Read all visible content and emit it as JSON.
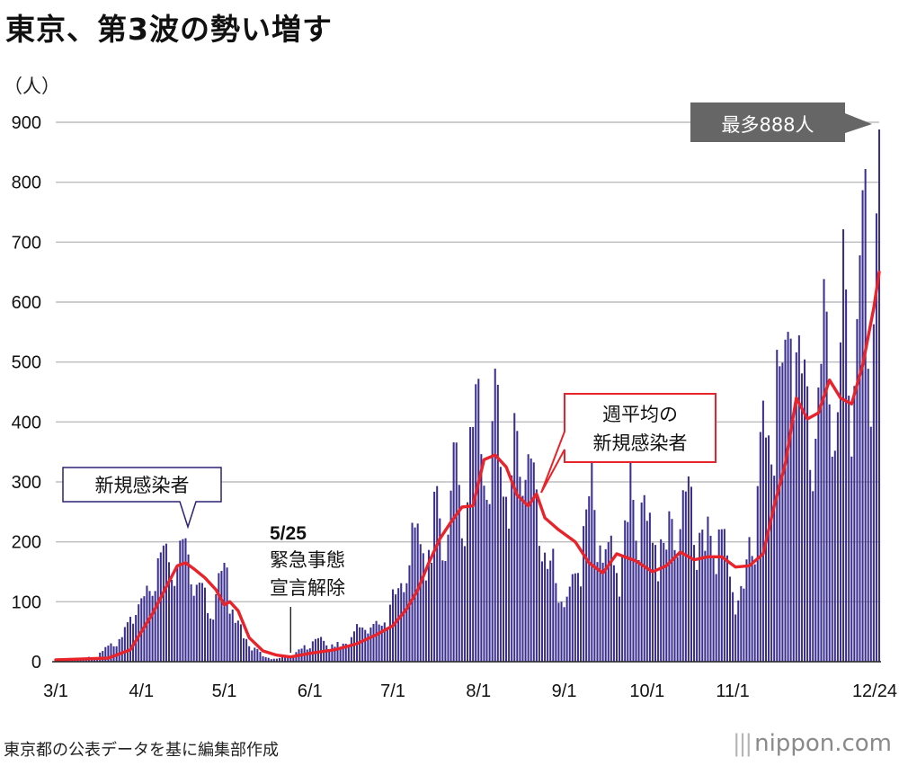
{
  "title": "東京、第3波の勢い増す",
  "unit_label": "（人）",
  "source": "東京都の公表データを基に編集部作成",
  "brand": "nippon.com",
  "colors": {
    "bar": "#3a2f8f",
    "line": "#e8232a",
    "grid": "#bdbdbd",
    "peak_box": "#666666"
  },
  "chart_data": {
    "type": "bar",
    "title": "東京、第3波の勢い増す",
    "ylabel": "（人）",
    "ylim": [
      0,
      900
    ],
    "yticks": [
      0,
      100,
      200,
      300,
      400,
      500,
      600,
      700,
      800,
      900
    ],
    "x_tick_labels": [
      "3/1",
      "4/1",
      "5/1",
      "6/1",
      "7/1",
      "8/1",
      "9/1",
      "10/1",
      "11/1",
      "12/24"
    ],
    "x_tick_dates": [
      "2020-03-01",
      "2020-04-01",
      "2020-05-01",
      "2020-06-01",
      "2020-07-01",
      "2020-08-01",
      "2020-09-01",
      "2020-10-01",
      "2020-11-01",
      "2020-12-24"
    ],
    "grid": true,
    "series": [
      {
        "name": "新規感染者",
        "kind": "bar",
        "x": [
          "2020-03-01",
          "2020-03-15",
          "2020-03-25",
          "2020-03-30",
          "2020-04-04",
          "2020-04-10",
          "2020-04-11",
          "2020-04-14",
          "2020-04-17",
          "2020-04-22",
          "2020-04-26",
          "2020-05-01",
          "2020-05-04",
          "2020-05-08",
          "2020-05-15",
          "2020-05-20",
          "2020-05-25",
          "2020-06-02",
          "2020-06-12",
          "2020-06-20",
          "2020-06-27",
          "2020-07-04",
          "2020-07-09",
          "2020-07-15",
          "2020-07-17",
          "2020-07-20",
          "2020-07-23",
          "2020-07-25",
          "2020-07-28",
          "2020-07-31",
          "2020-08-01",
          "2020-08-05",
          "2020-08-08",
          "2020-08-12",
          "2020-08-15",
          "2020-08-20",
          "2020-08-25",
          "2020-08-31",
          "2020-09-06",
          "2020-09-10",
          "2020-09-14",
          "2020-09-20",
          "2020-09-26",
          "2020-10-01",
          "2020-10-08",
          "2020-10-15",
          "2020-10-22",
          "2020-10-28",
          "2020-11-01",
          "2020-11-05",
          "2020-11-10",
          "2020-11-13",
          "2020-11-18",
          "2020-11-22",
          "2020-11-26",
          "2020-12-01",
          "2020-12-05",
          "2020-12-08",
          "2020-12-12",
          "2020-12-15",
          "2020-12-17",
          "2020-12-19",
          "2020-12-21",
          "2020-12-22",
          "2020-12-23",
          "2020-12-24"
        ],
        "values": [
          2,
          7,
          41,
          78,
          118,
          197,
          166,
          161,
          206,
          132,
          72,
          165,
          87,
          39,
          9,
          5,
          8,
          34,
          25,
          57,
          60,
          131,
          224,
          165,
          293,
          168,
          366,
          295,
          266,
          463,
          472,
          263,
          462,
          222,
          385,
          339,
          182,
          100,
          148,
          276,
          194,
          148,
          270,
          235,
          187,
          284,
          185,
          221,
          116,
          122,
          293,
          374,
          493,
          539,
          481,
          372,
          584,
          352,
          621,
          460,
          678,
          822,
          392,
          563,
          748,
          888
        ]
      },
      {
        "name": "週平均の新規感染者",
        "kind": "line",
        "x": [
          "2020-03-01",
          "2020-03-20",
          "2020-03-28",
          "2020-04-05",
          "2020-04-10",
          "2020-04-14",
          "2020-04-17",
          "2020-04-20",
          "2020-04-24",
          "2020-04-28",
          "2020-05-01",
          "2020-05-03",
          "2020-05-06",
          "2020-05-10",
          "2020-05-15",
          "2020-05-20",
          "2020-05-25",
          "2020-06-01",
          "2020-06-10",
          "2020-06-18",
          "2020-06-25",
          "2020-07-01",
          "2020-07-06",
          "2020-07-10",
          "2020-07-14",
          "2020-07-18",
          "2020-07-22",
          "2020-07-26",
          "2020-07-30",
          "2020-08-03",
          "2020-08-07",
          "2020-08-11",
          "2020-08-15",
          "2020-08-19",
          "2020-08-22",
          "2020-08-25",
          "2020-08-30",
          "2020-09-05",
          "2020-09-10",
          "2020-09-15",
          "2020-09-20",
          "2020-09-27",
          "2020-10-03",
          "2020-10-08",
          "2020-10-13",
          "2020-10-18",
          "2020-10-23",
          "2020-10-28",
          "2020-11-02",
          "2020-11-07",
          "2020-11-12",
          "2020-11-16",
          "2020-11-20",
          "2020-11-24",
          "2020-11-28",
          "2020-12-02",
          "2020-12-06",
          "2020-12-10",
          "2020-12-14",
          "2020-12-18",
          "2020-12-22",
          "2020-12-24"
        ],
        "values": [
          3,
          6,
          20,
          80,
          125,
          160,
          165,
          155,
          140,
          120,
          95,
          100,
          85,
          40,
          18,
          11,
          8,
          14,
          20,
          30,
          45,
          60,
          88,
          120,
          165,
          205,
          233,
          258,
          260,
          337,
          345,
          325,
          278,
          260,
          280,
          240,
          220,
          200,
          165,
          148,
          180,
          168,
          150,
          160,
          183,
          170,
          175,
          175,
          158,
          160,
          180,
          260,
          330,
          440,
          405,
          415,
          470,
          440,
          430,
          495,
          590,
          650
        ]
      }
    ],
    "annotations": [
      {
        "text": "新規感染者",
        "target": "bars"
      },
      {
        "text": "5/25",
        "sub": [
          "緊急事態",
          "宣言解除"
        ],
        "date": "2020-05-25"
      },
      {
        "text": [
          "週平均の",
          "新規感染者"
        ],
        "target": "line"
      },
      {
        "text": "最多888人",
        "date": "2020-12-24",
        "value": 888
      }
    ]
  }
}
